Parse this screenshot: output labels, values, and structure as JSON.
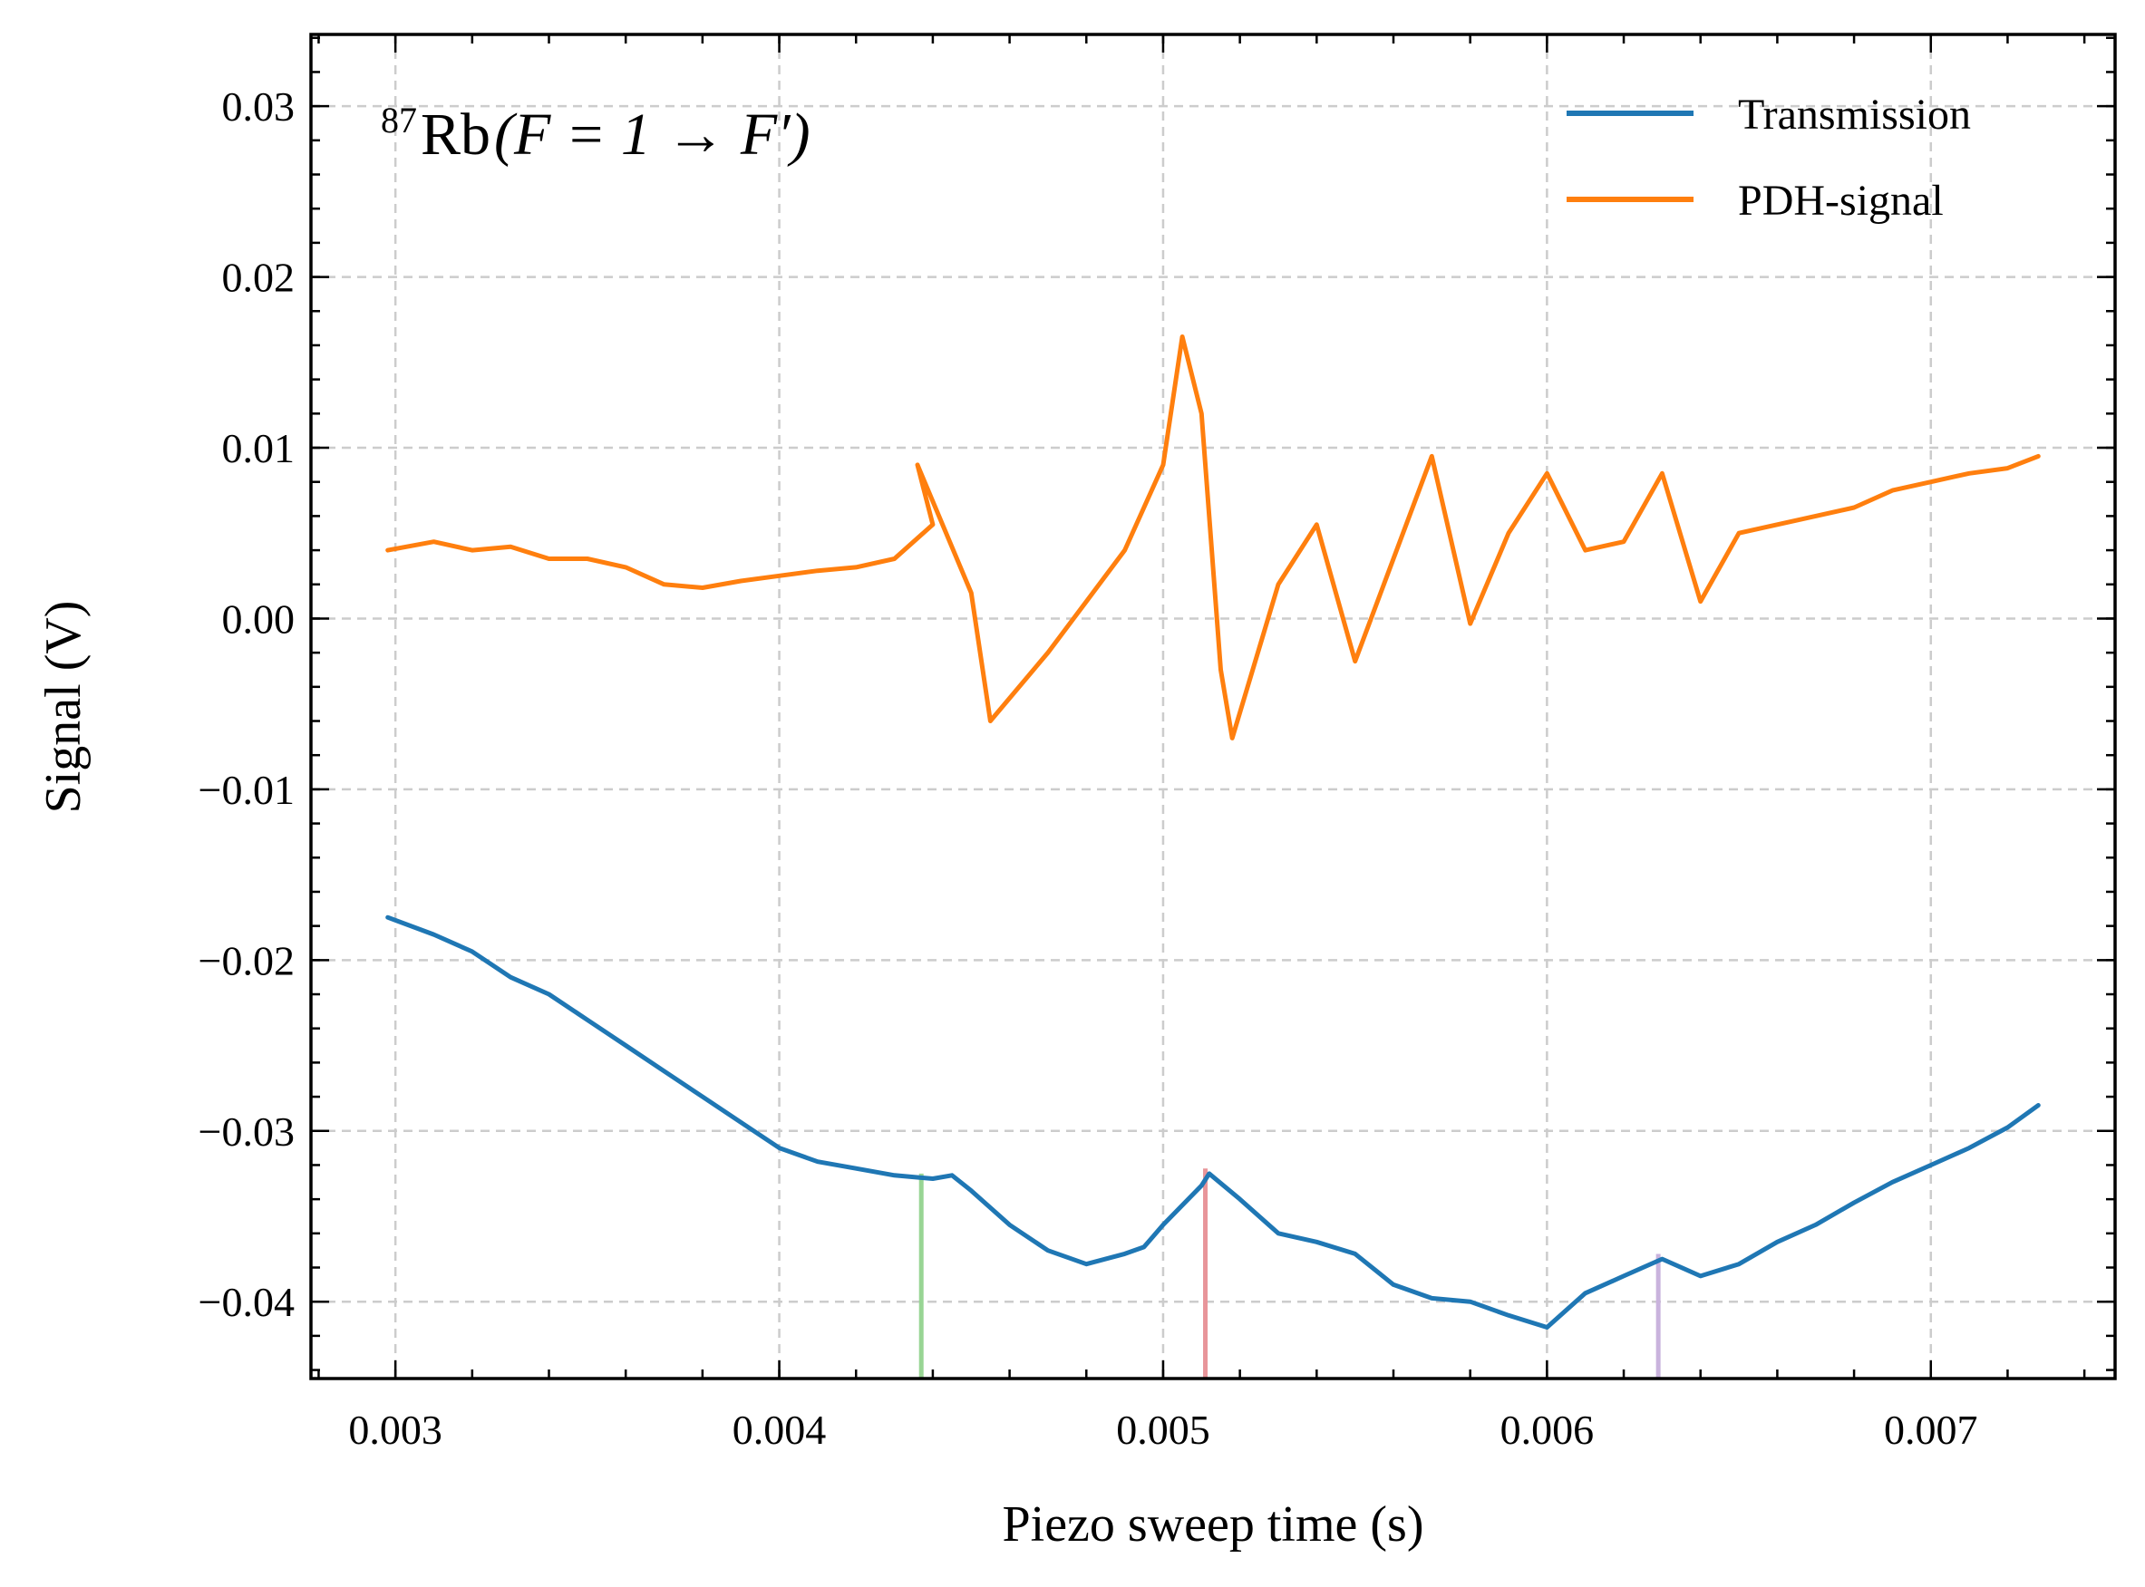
{
  "chart_data": {
    "type": "line",
    "annotation": {
      "superscript": "87",
      "element": "Rb",
      "formula": "(F = 1 → F′)"
    },
    "xlabel": "Piezo sweep time (s)",
    "ylabel": "Signal (V)",
    "xlim": [
      0.00278,
      0.00748
    ],
    "ylim": [
      -0.0445,
      0.0342
    ],
    "x_ticks": [
      0.003,
      0.004,
      0.005,
      0.006,
      0.007
    ],
    "x_tick_labels": [
      "0.003",
      "0.004",
      "0.005",
      "0.006",
      "0.007"
    ],
    "y_ticks": [
      -0.04,
      -0.03,
      -0.02,
      -0.01,
      0.0,
      0.01,
      0.02,
      0.03
    ],
    "y_tick_labels": [
      "−0.04",
      "−0.03",
      "−0.02",
      "−0.01",
      "0.00",
      "0.01",
      "0.02",
      "0.03"
    ],
    "grid": true,
    "legend_position": "top-right",
    "series": [
      {
        "name": "Transmission",
        "color": "#1f77b4",
        "x": [
          0.00298,
          0.0031,
          0.0032,
          0.0033,
          0.0034,
          0.0035,
          0.0036,
          0.0037,
          0.0038,
          0.0039,
          0.004,
          0.0041,
          0.0042,
          0.0043,
          0.0044,
          0.00445,
          0.0045,
          0.0046,
          0.0047,
          0.0048,
          0.0049,
          0.00495,
          0.005,
          0.0051,
          0.00512,
          0.0052,
          0.0053,
          0.0054,
          0.0055,
          0.0056,
          0.0057,
          0.0058,
          0.0059,
          0.006,
          0.0061,
          0.0062,
          0.0063,
          0.0064,
          0.0065,
          0.0066,
          0.0067,
          0.0068,
          0.0069,
          0.007,
          0.0071,
          0.0072,
          0.00728
        ],
        "y": [
          -0.0175,
          -0.0185,
          -0.0195,
          -0.021,
          -0.022,
          -0.0235,
          -0.025,
          -0.0265,
          -0.028,
          -0.0295,
          -0.031,
          -0.0318,
          -0.0322,
          -0.0326,
          -0.0328,
          -0.0326,
          -0.0335,
          -0.0355,
          -0.037,
          -0.0378,
          -0.0372,
          -0.0368,
          -0.0355,
          -0.0332,
          -0.0325,
          -0.034,
          -0.036,
          -0.0365,
          -0.0372,
          -0.039,
          -0.0398,
          -0.04,
          -0.0408,
          -0.0415,
          -0.0395,
          -0.0385,
          -0.0375,
          -0.0385,
          -0.0378,
          -0.0365,
          -0.0355,
          -0.0342,
          -0.033,
          -0.032,
          -0.031,
          -0.0298,
          -0.0285
        ]
      },
      {
        "name": "PDH-signal",
        "color": "#ff7f0e",
        "x": [
          0.00298,
          0.0031,
          0.0032,
          0.0033,
          0.0034,
          0.0035,
          0.0036,
          0.0037,
          0.0038,
          0.0039,
          0.004,
          0.0041,
          0.0042,
          0.0043,
          0.0044,
          0.00436,
          0.0045,
          0.00455,
          0.0047,
          0.0048,
          0.0049,
          0.005,
          0.00505,
          0.0051,
          0.00515,
          0.00518,
          0.0053,
          0.0054,
          0.0055,
          0.0056,
          0.0057,
          0.0058,
          0.0059,
          0.006,
          0.0061,
          0.0062,
          0.0063,
          0.0064,
          0.0065,
          0.0066,
          0.0067,
          0.0068,
          0.0069,
          0.007,
          0.0071,
          0.0072,
          0.00728
        ],
        "y": [
          0.004,
          0.0045,
          0.004,
          0.0042,
          0.0035,
          0.0035,
          0.003,
          0.002,
          0.0018,
          0.0022,
          0.0025,
          0.0028,
          0.003,
          0.0035,
          0.0055,
          0.009,
          0.0015,
          -0.006,
          -0.002,
          0.001,
          0.004,
          0.009,
          0.0165,
          0.012,
          -0.003,
          -0.007,
          0.002,
          0.0055,
          -0.0025,
          0.0035,
          0.0095,
          -0.0003,
          0.005,
          0.0085,
          0.004,
          0.0045,
          0.0085,
          0.001,
          0.005,
          0.0055,
          0.006,
          0.0065,
          0.0075,
          0.008,
          0.0085,
          0.0088,
          0.0095
        ]
      }
    ],
    "markers": [
      {
        "x": 0.00437,
        "y_top": -0.0325,
        "color": "#98d594"
      },
      {
        "x": 0.00511,
        "y_top": -0.0322,
        "color": "#e8959a"
      },
      {
        "x": 0.00629,
        "y_top": -0.0372,
        "color": "#c9b3dd"
      }
    ]
  }
}
